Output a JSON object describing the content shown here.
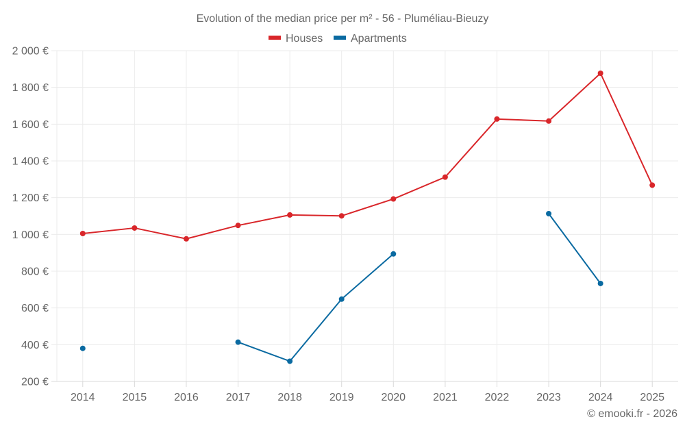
{
  "chart_data": {
    "type": "line",
    "title": "Evolution of the median price per m² - 56 - Pluméliau-Bieuzy",
    "xlabel": "",
    "ylabel": "",
    "categories": [
      "2014",
      "2015",
      "2016",
      "2017",
      "2018",
      "2019",
      "2020",
      "2021",
      "2022",
      "2023",
      "2024",
      "2025"
    ],
    "ylim": [
      200,
      2000
    ],
    "yticks": [
      200,
      400,
      600,
      800,
      1000,
      1200,
      1400,
      1600,
      1800,
      2000
    ],
    "ytick_labels": [
      "200 €",
      "400 €",
      "600 €",
      "800 €",
      "1 000 €",
      "1 200 €",
      "1 400 €",
      "1 600 €",
      "1 800 €",
      "2 000 €"
    ],
    "grid": true,
    "legend_position": "top-center",
    "series": [
      {
        "name": "Houses",
        "color": "#d9262a",
        "values": [
          1005,
          1035,
          976,
          1049,
          1106,
          1101,
          1193,
          1312,
          1628,
          1617,
          1877,
          1268
        ]
      },
      {
        "name": "Apartments",
        "color": "#0a6aa1",
        "values": [
          380,
          null,
          null,
          414,
          310,
          648,
          894,
          null,
          null,
          1113,
          733,
          null
        ]
      }
    ],
    "footer": "© emooki.fr - 2026"
  }
}
